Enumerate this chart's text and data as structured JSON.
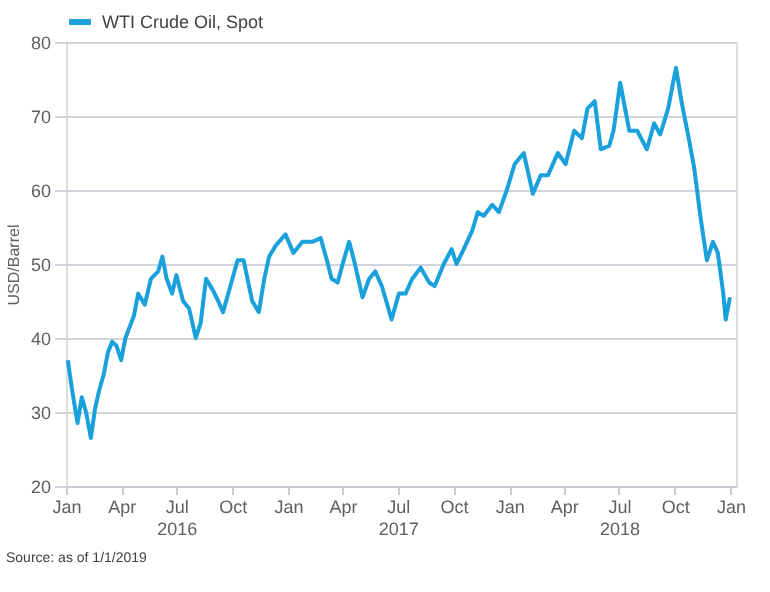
{
  "chart_data": {
    "type": "line",
    "ylabel": "USD/Barrel",
    "xlim": [
      "2016-01-01",
      "2019-01-10"
    ],
    "xticks": [
      {
        "value": "2016-01-01",
        "label": "Jan"
      },
      {
        "value": "2016-04-01",
        "label": "Apr"
      },
      {
        "value": "2016-07-01",
        "label": "Jul\n2016"
      },
      {
        "value": "2016-10-01",
        "label": "Oct"
      },
      {
        "value": "2017-01-01",
        "label": "Jan"
      },
      {
        "value": "2017-04-01",
        "label": "Apr"
      },
      {
        "value": "2017-07-01",
        "label": "Jul\n2017"
      },
      {
        "value": "2017-10-01",
        "label": "Oct"
      },
      {
        "value": "2018-01-01",
        "label": "Jan"
      },
      {
        "value": "2018-04-01",
        "label": "Apr"
      },
      {
        "value": "2018-07-01",
        "label": "Jul\n2018"
      },
      {
        "value": "2018-10-01",
        "label": "Oct"
      },
      {
        "value": "2019-01-01",
        "label": "Jan"
      }
    ],
    "ylim": [
      20,
      80
    ],
    "yticks": [
      20,
      30,
      40,
      50,
      60,
      70,
      80
    ],
    "grid": "y",
    "legend": "top left",
    "marker": "none",
    "line_style": "solid",
    "annotations": [
      "Source: as of 1/1/2019"
    ],
    "series": [
      {
        "name": "WTI Crude Oil, Spot",
        "color": "#1aa1dc",
        "x": [
          "2016-01-04",
          "2016-01-11",
          "2016-01-20",
          "2016-01-27",
          "2016-02-03",
          "2016-02-11",
          "2016-02-18",
          "2016-02-25",
          "2016-03-03",
          "2016-03-10",
          "2016-03-17",
          "2016-03-24",
          "2016-04-01",
          "2016-04-08",
          "2016-04-15",
          "2016-04-22",
          "2016-04-29",
          "2016-05-10",
          "2016-05-20",
          "2016-06-01",
          "2016-06-08",
          "2016-06-15",
          "2016-06-24",
          "2016-07-01",
          "2016-07-12",
          "2016-07-22",
          "2016-08-02",
          "2016-08-10",
          "2016-08-19",
          "2016-08-30",
          "2016-09-08",
          "2016-09-16",
          "2016-09-28",
          "2016-10-10",
          "2016-10-20",
          "2016-11-03",
          "2016-11-14",
          "2016-11-23",
          "2016-12-01",
          "2016-12-12",
          "2016-12-28",
          "2017-01-10",
          "2017-01-25",
          "2017-02-10",
          "2017-02-24",
          "2017-03-08",
          "2017-03-14",
          "2017-03-24",
          "2017-04-03",
          "2017-04-12",
          "2017-04-20",
          "2017-05-04",
          "2017-05-15",
          "2017-05-25",
          "2017-06-05",
          "2017-06-21",
          "2017-07-03",
          "2017-07-14",
          "2017-07-25",
          "2017-08-08",
          "2017-08-22",
          "2017-08-31",
          "2017-09-15",
          "2017-09-28",
          "2017-10-06",
          "2017-10-18",
          "2017-11-01",
          "2017-11-10",
          "2017-11-20",
          "2017-12-04",
          "2017-12-15",
          "2017-12-28",
          "2018-01-10",
          "2018-01-25",
          "2018-02-09",
          "2018-02-22",
          "2018-03-06",
          "2018-03-22",
          "2018-04-04",
          "2018-04-18",
          "2018-05-01",
          "2018-05-10",
          "2018-05-22",
          "2018-06-01",
          "2018-06-15",
          "2018-06-22",
          "2018-07-03",
          "2018-07-18",
          "2018-07-31",
          "2018-08-16",
          "2018-08-28",
          "2018-09-07",
          "2018-09-20",
          "2018-10-03",
          "2018-10-12",
          "2018-10-24",
          "2018-11-02",
          "2018-11-13",
          "2018-11-23",
          "2018-12-03",
          "2018-12-11",
          "2018-12-20",
          "2018-12-24",
          "2018-12-31"
        ],
        "values": [
          37,
          33,
          28.5,
          32,
          30,
          26.5,
          30.5,
          33,
          35,
          38,
          39.5,
          39,
          37,
          40,
          41.5,
          43,
          46,
          44.5,
          48,
          49,
          51,
          48,
          46,
          48.5,
          45,
          44,
          40,
          42,
          48,
          46.5,
          45,
          43.5,
          47,
          50.5,
          50.5,
          45,
          43.5,
          48,
          51,
          52.5,
          54,
          51.5,
          53,
          53,
          53.5,
          50,
          48,
          47.5,
          50.5,
          53,
          50.5,
          45.5,
          48,
          49,
          47,
          42.5,
          46,
          46,
          48,
          49.5,
          47.5,
          47,
          50,
          52,
          50,
          52,
          54.5,
          57,
          56.5,
          58,
          57,
          60,
          63.5,
          65,
          59.5,
          62,
          62,
          65,
          63.5,
          68,
          67,
          71,
          72,
          65.5,
          66,
          68,
          74.5,
          68,
          68,
          65.5,
          69,
          67.5,
          71,
          76.5,
          72,
          67,
          63,
          56,
          50.5,
          53,
          51.5,
          46,
          42.5,
          45.5
        ]
      }
    ]
  }
}
